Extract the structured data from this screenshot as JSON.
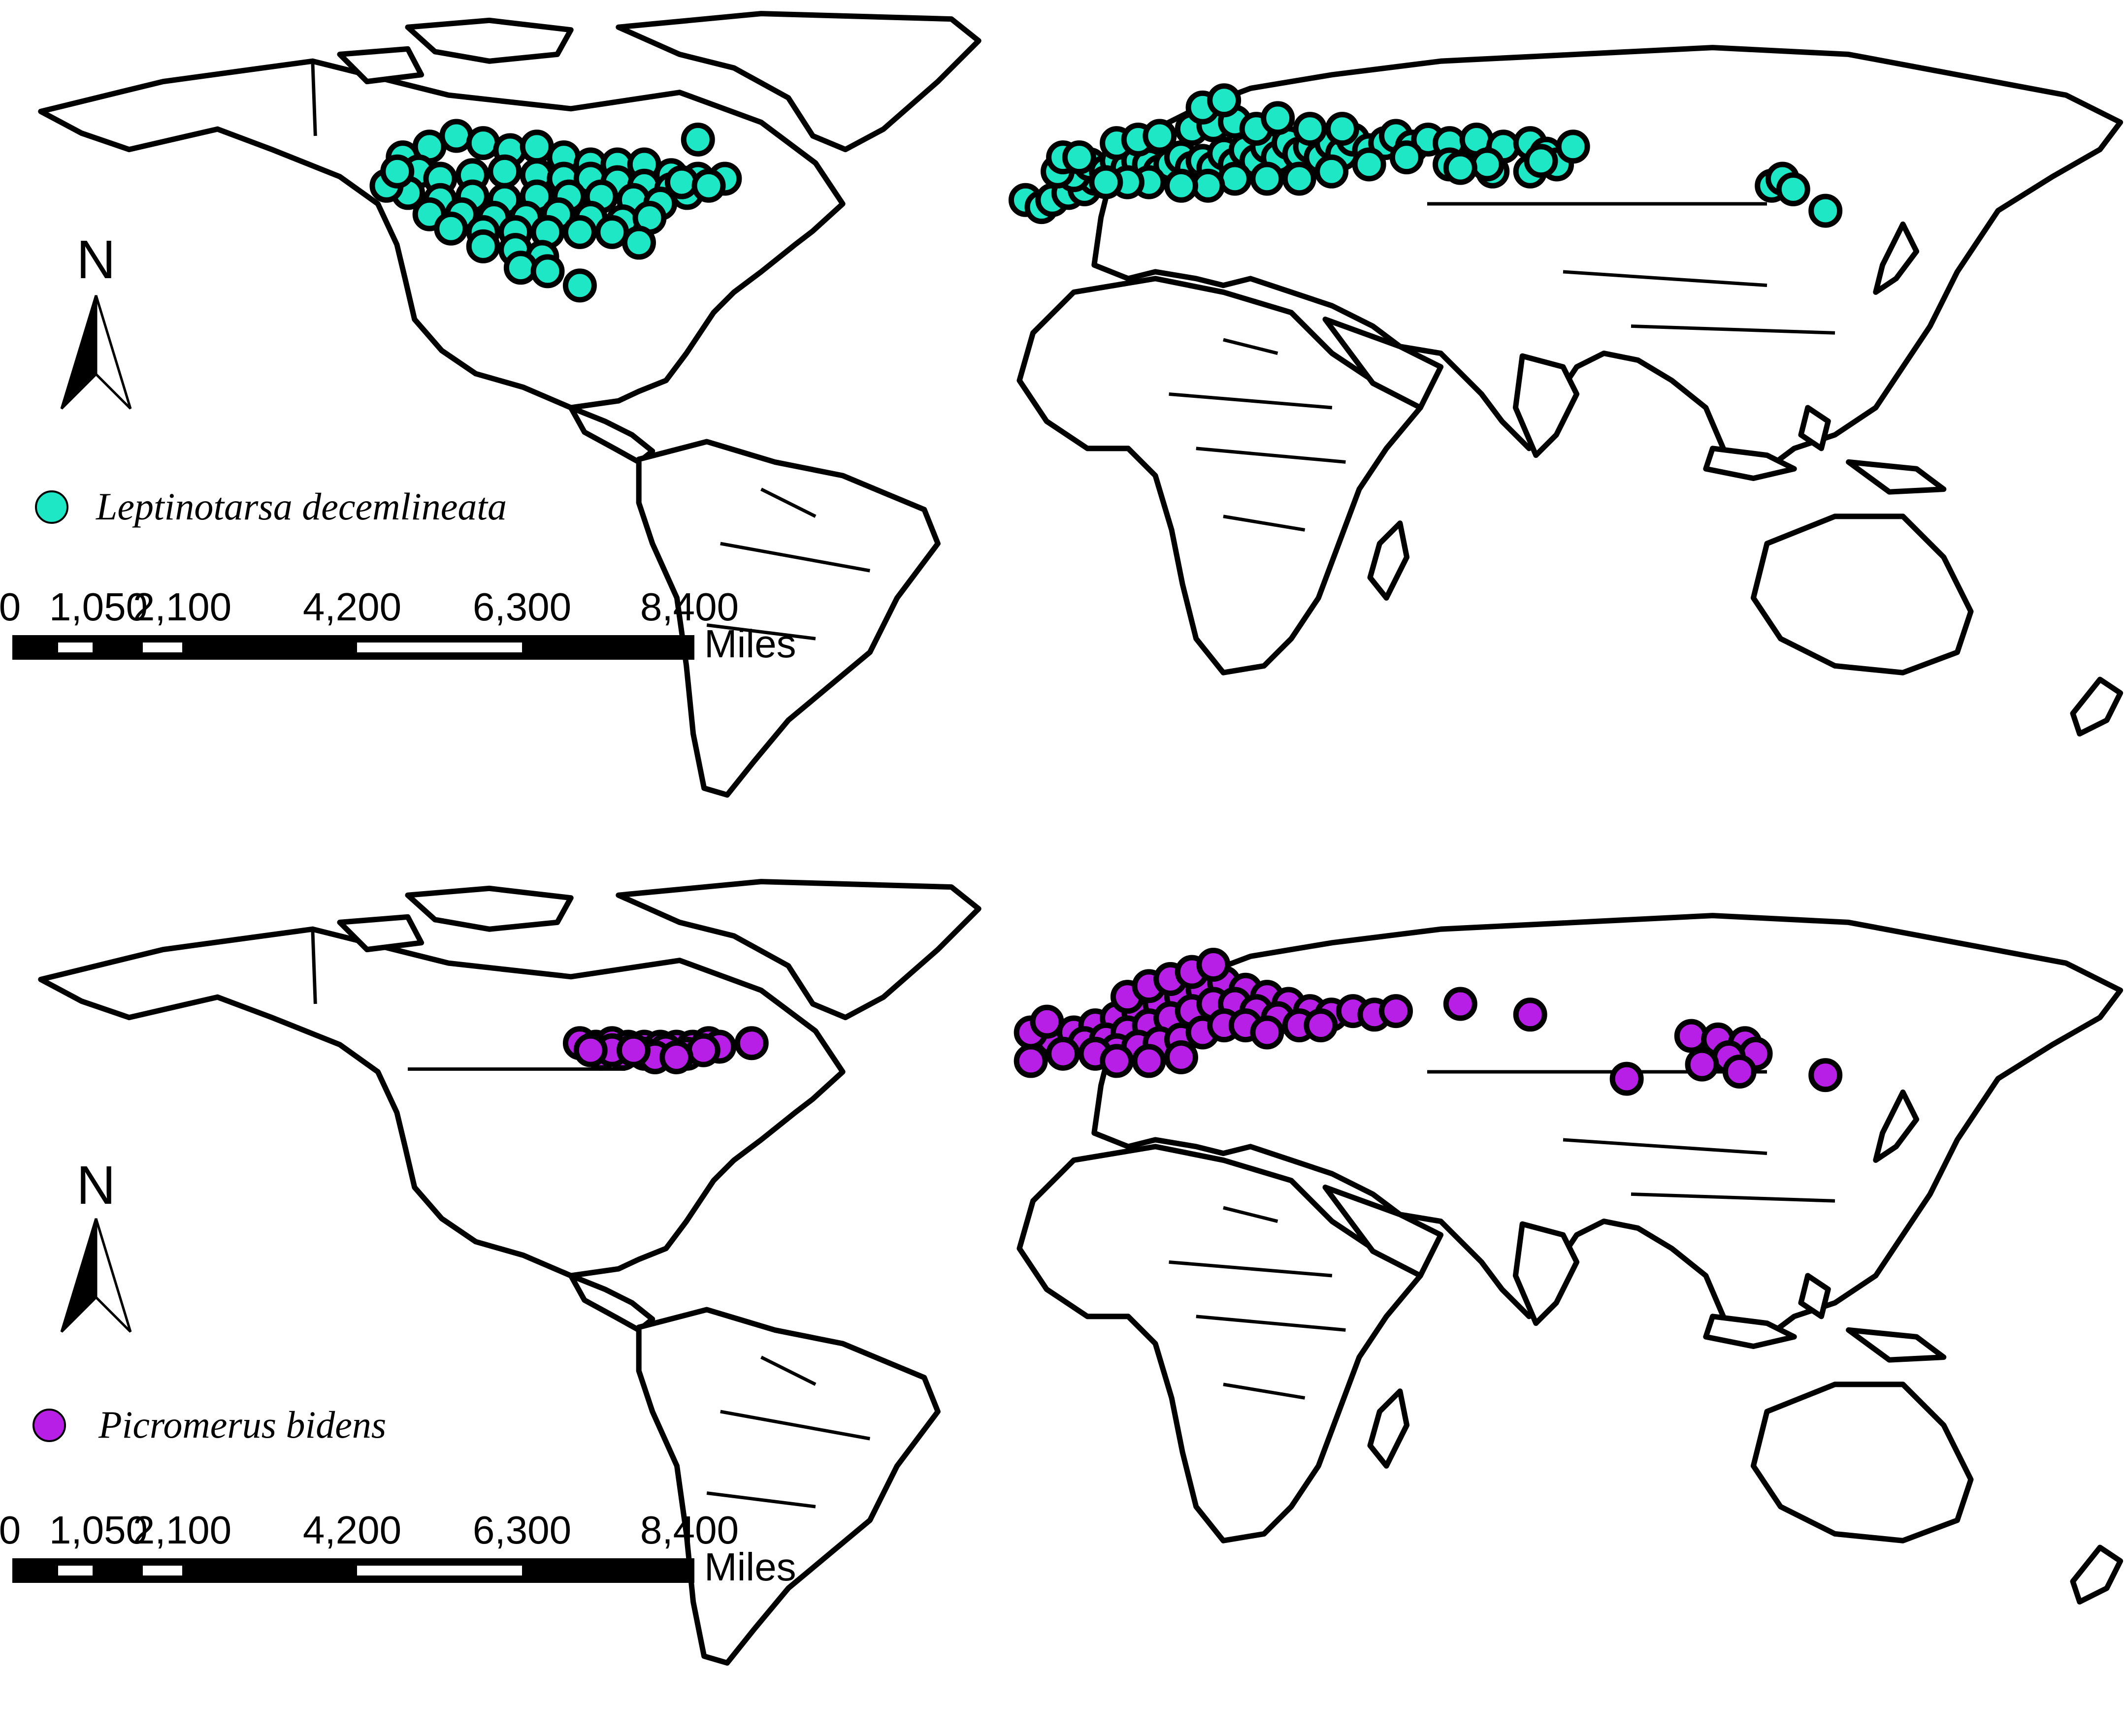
{
  "colors": {
    "panel_1_marker": "#1de7c4",
    "panel_2_marker": "#b71fe6",
    "land_fill": "#ffffff",
    "outline": "#000000"
  },
  "panels": [
    {
      "id": "leptinotarsa",
      "north_arrow_label": "N",
      "legend_label": "Leptinotarsa decemlineata",
      "legend_symbol": "filled-circle",
      "scale_ticks": [
        "0",
        "1,050",
        "2,100",
        "4,200",
        "6,300",
        "8,400"
      ],
      "scale_unit": "Miles",
      "occurrences": {
        "north_america": [
          [
            -125,
            52
          ],
          [
            -120,
            55
          ],
          [
            -115,
            58
          ],
          [
            -110,
            56
          ],
          [
            -105,
            54
          ],
          [
            -100,
            55
          ],
          [
            -95,
            52
          ],
          [
            -90,
            50
          ],
          [
            -85,
            50
          ],
          [
            -80,
            50
          ],
          [
            -75,
            47
          ],
          [
            -70,
            46
          ],
          [
            -65,
            46
          ],
          [
            -70,
            57
          ],
          [
            -122,
            48
          ],
          [
            -118,
            46
          ],
          [
            -112,
            47
          ],
          [
            -106,
            48
          ],
          [
            -100,
            47
          ],
          [
            -95,
            46
          ],
          [
            -90,
            46
          ],
          [
            -85,
            45
          ],
          [
            -80,
            44
          ],
          [
            -75,
            43
          ],
          [
            -72,
            42
          ],
          [
            -124,
            42
          ],
          [
            -118,
            40
          ],
          [
            -112,
            41
          ],
          [
            -106,
            40
          ],
          [
            -100,
            41
          ],
          [
            -94,
            41
          ],
          [
            -88,
            41
          ],
          [
            -82,
            40
          ],
          [
            -77,
            39
          ],
          [
            -120,
            36
          ],
          [
            -114,
            36
          ],
          [
            -108,
            35
          ],
          [
            -102,
            35
          ],
          [
            -96,
            36
          ],
          [
            -90,
            35
          ],
          [
            -84,
            34
          ],
          [
            -79,
            35
          ],
          [
            -116,
            32
          ],
          [
            -110,
            31
          ],
          [
            -104,
            31
          ],
          [
            -98,
            31
          ],
          [
            -92,
            31
          ],
          [
            -86,
            31
          ],
          [
            -81,
            28
          ],
          [
            -110,
            27
          ],
          [
            -104,
            26
          ],
          [
            -99,
            24
          ],
          [
            -103,
            21
          ],
          [
            -98,
            20
          ],
          [
            -92,
            16
          ],
          [
            -128,
            44
          ],
          [
            -126,
            48
          ],
          [
            -73,
            45
          ],
          [
            -68,
            44
          ]
        ],
        "eurasia": [
          [
            -9,
            40
          ],
          [
            -6,
            38
          ],
          [
            -4,
            40
          ],
          [
            -1,
            42
          ],
          [
            2,
            43
          ],
          [
            4,
            46
          ],
          [
            0,
            47
          ],
          [
            -3,
            48
          ],
          [
            3,
            50
          ],
          [
            6,
            48
          ],
          [
            8,
            51
          ],
          [
            10,
            49
          ],
          [
            12,
            51
          ],
          [
            14,
            50
          ],
          [
            16,
            48
          ],
          [
            18,
            50
          ],
          [
            20,
            52
          ],
          [
            22,
            49
          ],
          [
            24,
            51
          ],
          [
            26,
            49
          ],
          [
            28,
            53
          ],
          [
            30,
            50
          ],
          [
            32,
            54
          ],
          [
            34,
            51
          ],
          [
            36,
            55
          ],
          [
            38,
            52
          ],
          [
            40,
            56
          ],
          [
            42,
            53
          ],
          [
            44,
            55
          ],
          [
            46,
            52
          ],
          [
            48,
            56
          ],
          [
            50,
            53
          ],
          [
            52,
            57
          ],
          [
            55,
            54
          ],
          [
            58,
            56
          ],
          [
            60,
            58
          ],
          [
            63,
            55
          ],
          [
            66,
            57
          ],
          [
            70,
            56
          ],
          [
            75,
            57
          ],
          [
            80,
            55
          ],
          [
            85,
            56
          ],
          [
            88,
            53
          ],
          [
            90,
            50
          ],
          [
            85,
            48
          ],
          [
            78,
            48
          ],
          [
            70,
            50
          ],
          [
            62,
            52
          ],
          [
            55,
            50
          ],
          [
            48,
            48
          ],
          [
            42,
            46
          ],
          [
            36,
            46
          ],
          [
            30,
            46
          ],
          [
            25,
            44
          ],
          [
            20,
            44
          ],
          [
            14,
            45
          ],
          [
            10,
            45
          ],
          [
            6,
            45
          ],
          [
            8,
            56
          ],
          [
            12,
            57
          ],
          [
            16,
            58
          ],
          [
            22,
            60
          ],
          [
            26,
            61
          ],
          [
            30,
            62
          ],
          [
            34,
            60
          ],
          [
            24,
            66
          ],
          [
            28,
            68
          ],
          [
            38,
            63
          ],
          [
            44,
            60
          ],
          [
            50,
            60
          ],
          [
            93,
            55
          ],
          [
            87,
            51
          ],
          [
            77,
            50
          ],
          [
            72,
            49
          ],
          [
            -2,
            52
          ],
          [
            1,
            52
          ],
          [
            130,
            44
          ],
          [
            132,
            46
          ],
          [
            134,
            43
          ],
          [
            140,
            37
          ]
        ]
      }
    },
    {
      "id": "picromerus",
      "north_arrow_label": "N",
      "legend_label": "Picromerus bidens",
      "legend_symbol": "filled-circle",
      "scale_ticks": [
        "0",
        "1,050",
        "2,100",
        "4,200",
        "6,300",
        "8,400"
      ],
      "scale_unit": "Miles",
      "occurrences": {
        "north_america": [
          [
            -92,
            47
          ],
          [
            -89,
            46
          ],
          [
            -86,
            47
          ],
          [
            -83,
            46
          ],
          [
            -80,
            46
          ],
          [
            -77,
            46
          ],
          [
            -74,
            46
          ],
          [
            -71,
            46
          ],
          [
            -68,
            47
          ],
          [
            -66,
            46
          ],
          [
            -88,
            44
          ],
          [
            -84,
            44
          ],
          [
            -80,
            44
          ],
          [
            -76,
            45
          ],
          [
            -72,
            44
          ],
          [
            -69,
            45
          ],
          [
            -86,
            45
          ],
          [
            -78,
            43
          ],
          [
            -74,
            43
          ],
          [
            -60,
            47
          ],
          [
            -90,
            45
          ],
          [
            -82,
            45
          ]
        ],
        "eurasia": [
          [
            -4,
            48
          ],
          [
            0,
            50
          ],
          [
            4,
            52
          ],
          [
            8,
            54
          ],
          [
            12,
            56
          ],
          [
            16,
            58
          ],
          [
            20,
            60
          ],
          [
            24,
            62
          ],
          [
            28,
            64
          ],
          [
            32,
            62
          ],
          [
            36,
            60
          ],
          [
            40,
            58
          ],
          [
            44,
            56
          ],
          [
            48,
            55
          ],
          [
            52,
            56
          ],
          [
            56,
            55
          ],
          [
            60,
            56
          ],
          [
            2,
            47
          ],
          [
            6,
            48
          ],
          [
            10,
            50
          ],
          [
            14,
            52
          ],
          [
            18,
            54
          ],
          [
            22,
            56
          ],
          [
            26,
            58
          ],
          [
            30,
            58
          ],
          [
            34,
            56
          ],
          [
            38,
            54
          ],
          [
            42,
            52
          ],
          [
            46,
            52
          ],
          [
            8,
            45
          ],
          [
            12,
            46
          ],
          [
            16,
            47
          ],
          [
            20,
            48
          ],
          [
            24,
            50
          ],
          [
            28,
            52
          ],
          [
            32,
            52
          ],
          [
            36,
            50
          ],
          [
            -8,
            42
          ],
          [
            -2,
            44
          ],
          [
            4,
            44
          ],
          [
            8,
            42
          ],
          [
            14,
            42
          ],
          [
            20,
            43
          ],
          [
            -8,
            50
          ],
          [
            -5,
            53
          ],
          [
            10,
            60
          ],
          [
            14,
            63
          ],
          [
            18,
            65
          ],
          [
            22,
            67
          ],
          [
            26,
            69
          ],
          [
            72,
            58
          ],
          [
            85,
            55
          ],
          [
            103,
            37
          ],
          [
            115,
            49
          ],
          [
            120,
            48
          ],
          [
            125,
            47
          ],
          [
            127,
            44
          ],
          [
            122,
            43
          ],
          [
            117,
            41
          ],
          [
            124,
            39
          ],
          [
            140,
            38
          ]
        ]
      }
    }
  ]
}
